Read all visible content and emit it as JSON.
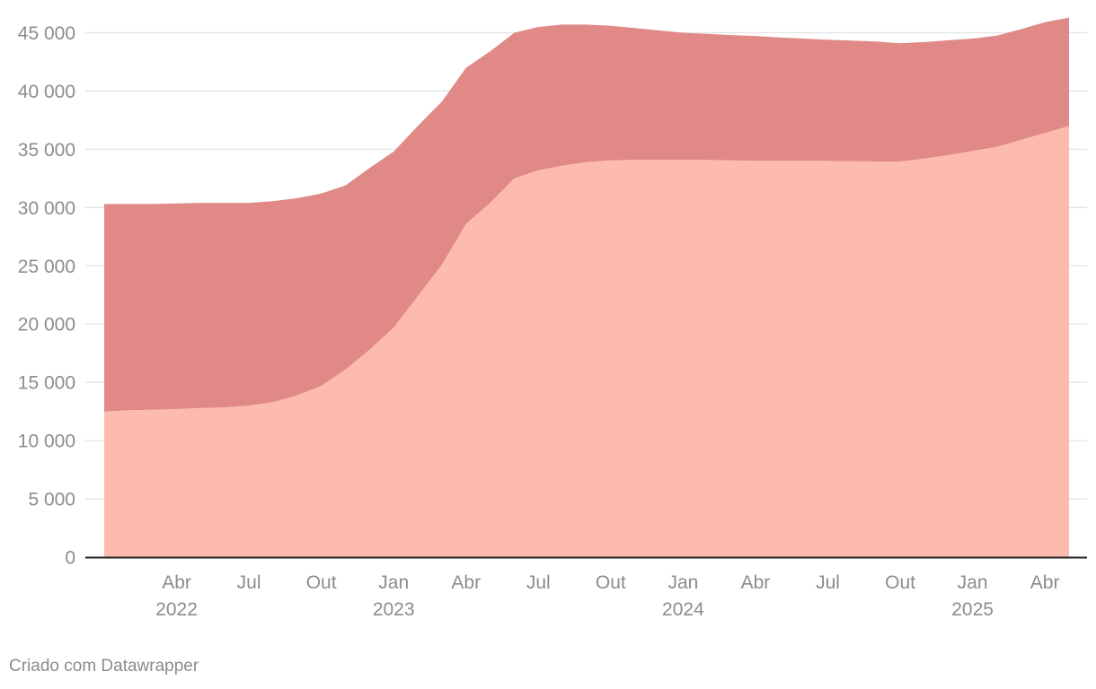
{
  "credit": "Criado com Datawrapper",
  "chart_data": {
    "type": "area",
    "stacked": true,
    "y_axis": {
      "ylim": [
        0,
        47000
      ],
      "ticks": [
        0,
        5000,
        10000,
        15000,
        20000,
        25000,
        30000,
        35000,
        40000,
        45000
      ],
      "tick_labels": [
        "0",
        "5 000",
        "10 000",
        "15 000",
        "20 000",
        "25 000",
        "30 000",
        "35 000",
        "40 000",
        "45 000"
      ],
      "gridlines": true
    },
    "x_axis": {
      "range": [
        "2022-01",
        "2025-05"
      ],
      "ticks": [
        {
          "date": "2022-04",
          "label": "Abr",
          "year": "2022"
        },
        {
          "date": "2022-07",
          "label": "Jul",
          "year": ""
        },
        {
          "date": "2022-10",
          "label": "Out",
          "year": ""
        },
        {
          "date": "2023-01",
          "label": "Jan",
          "year": "2023"
        },
        {
          "date": "2023-04",
          "label": "Abr",
          "year": ""
        },
        {
          "date": "2023-07",
          "label": "Jul",
          "year": ""
        },
        {
          "date": "2023-10",
          "label": "Out",
          "year": ""
        },
        {
          "date": "2024-01",
          "label": "Jan",
          "year": "2024"
        },
        {
          "date": "2024-04",
          "label": "Abr",
          "year": ""
        },
        {
          "date": "2024-07",
          "label": "Jul",
          "year": ""
        },
        {
          "date": "2024-10",
          "label": "Out",
          "year": ""
        },
        {
          "date": "2025-01",
          "label": "Jan",
          "year": "2025"
        },
        {
          "date": "2025-04",
          "label": "Abr",
          "year": ""
        }
      ]
    },
    "x": [
      "2022-01",
      "2022-02",
      "2022-03",
      "2022-04",
      "2022-05",
      "2022-06",
      "2022-07",
      "2022-08",
      "2022-09",
      "2022-10",
      "2022-11",
      "2022-12",
      "2023-01",
      "2023-02",
      "2023-03",
      "2023-04",
      "2023-05",
      "2023-06",
      "2023-07",
      "2023-08",
      "2023-09",
      "2023-10",
      "2023-11",
      "2023-12",
      "2024-01",
      "2024-02",
      "2024-03",
      "2024-04",
      "2024-05",
      "2024-06",
      "2024-07",
      "2024-08",
      "2024-09",
      "2024-10",
      "2024-11",
      "2024-12",
      "2025-01",
      "2025-02",
      "2025-03",
      "2025-04",
      "2025-05"
    ],
    "series": [
      {
        "color": "#fdbbad",
        "values": [
          12500,
          12600,
          12650,
          12700,
          12800,
          12850,
          13000,
          13300,
          13900,
          14700,
          16100,
          17800,
          19700,
          22400,
          25100,
          28600,
          30400,
          32500,
          33200,
          33600,
          33900,
          34050,
          34100,
          34100,
          34100,
          34080,
          34050,
          34020,
          34000,
          34000,
          34000,
          33980,
          33950,
          33950,
          34200,
          34500,
          34850,
          35200,
          35800,
          36400,
          37000
        ]
      },
      {
        "color": "#e08987",
        "values": [
          17800,
          17700,
          17650,
          17650,
          17600,
          17550,
          17400,
          17250,
          16900,
          16500,
          15800,
          15600,
          15100,
          14600,
          14000,
          13400,
          13000,
          12500,
          12300,
          12100,
          11800,
          11550,
          11300,
          11100,
          10900,
          10820,
          10750,
          10700,
          10600,
          10500,
          10400,
          10350,
          10300,
          10150,
          10000,
          9850,
          9650,
          9550,
          9500,
          9500,
          9300
        ]
      }
    ]
  }
}
